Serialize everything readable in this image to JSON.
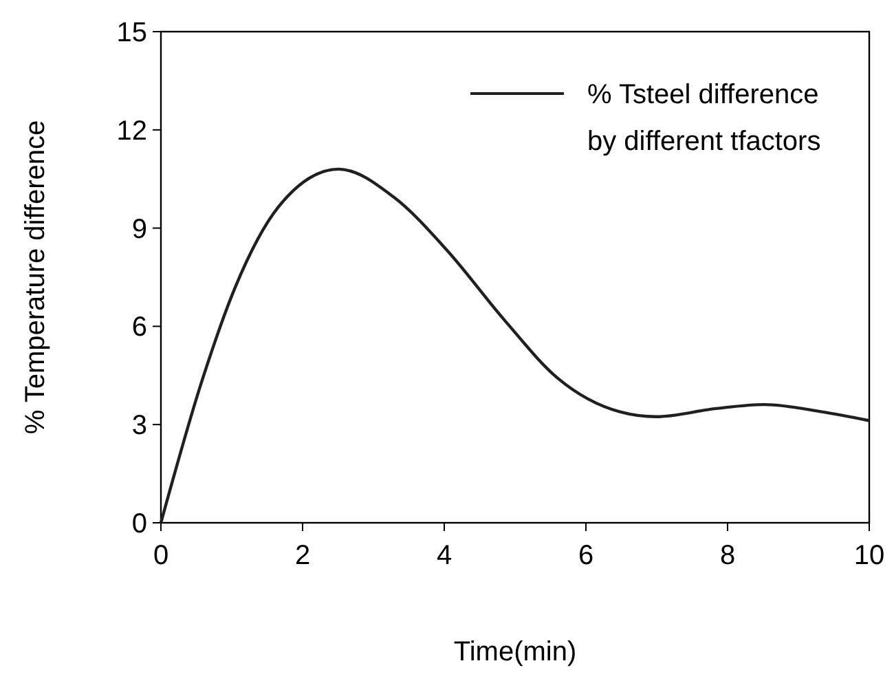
{
  "chart_data": {
    "type": "line",
    "xlabel": "Time(min)",
    "ylabel": "% Temperature difference",
    "x": [
      0,
      0.58,
      1.05,
      1.66,
      2.51,
      3.29,
      4.04,
      4.85,
      5.6,
      6.48,
      6.99,
      7.84,
      8.52,
      9.33,
      10
    ],
    "series": [
      {
        "name": "% Tsteel difference\nby different tfactors",
        "color": "#231f20",
        "values": [
          0,
          4.34,
          7.2,
          9.65,
          10.8,
          9.94,
          8.32,
          6.19,
          4.42,
          3.39,
          3.24,
          3.49,
          3.61,
          3.39,
          3.12
        ]
      }
    ],
    "xlim": [
      0,
      10
    ],
    "xticks": [
      0,
      2,
      4,
      6,
      8,
      10
    ],
    "ylim": [
      0,
      15
    ],
    "yticks": [
      0,
      3,
      6,
      9,
      12,
      15
    ],
    "grid": false,
    "legend": "top right",
    "marker": "none",
    "line_style": "solid"
  }
}
